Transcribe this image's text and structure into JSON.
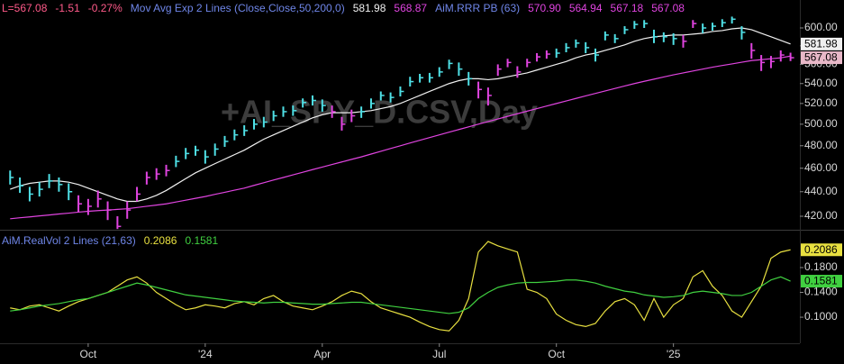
{
  "chart_data": [
    {
      "type": "ohlc",
      "watermark": "+AI_SPY_D.CSV,Day",
      "legend_items": [
        {
          "text": "L=567.08",
          "color": "#ff5a8a"
        },
        {
          "text": "-1.51",
          "color": "#ff5a8a"
        },
        {
          "text": "-0.27%",
          "color": "#ff5a8a"
        },
        {
          "text": "Mov Avg Exp 2 Lines (Close,Close,50,200,0)",
          "color": "#6f86e8"
        },
        {
          "text": "581.98",
          "color": "#f0f0f0"
        },
        {
          "text": "568.87",
          "color": "#e044e0"
        },
        {
          "text": "AiM.RRR PB (63)",
          "color": "#6f86e8"
        },
        {
          "text": "570.90",
          "color": "#e044e0"
        },
        {
          "text": "564.94",
          "color": "#e044e0"
        },
        {
          "text": "567.18",
          "color": "#e044e0"
        },
        {
          "text": "567.08",
          "color": "#e044e0"
        }
      ],
      "log_scale": true,
      "xlim": [
        0.74,
        21.24
      ],
      "ylim": [
        409.4,
        632.6
      ],
      "yticks": [
        {
          "value": 420,
          "label": "420.00"
        },
        {
          "value": 440,
          "label": "440.00"
        },
        {
          "value": 460,
          "label": "460.00"
        },
        {
          "value": 480,
          "label": "480.00"
        },
        {
          "value": 500,
          "label": "500.00"
        },
        {
          "value": 520,
          "label": "520.00"
        },
        {
          "value": 540,
          "label": "540.00"
        },
        {
          "value": 560,
          "label": "560.00"
        },
        {
          "value": 580,
          "label": "580.00"
        },
        {
          "value": 600,
          "label": "600.00"
        }
      ],
      "x": [
        1,
        1.25,
        1.5,
        1.75,
        2,
        2.25,
        2.5,
        2.75,
        3,
        3.25,
        3.5,
        3.75,
        4,
        4.25,
        4.5,
        4.75,
        5,
        5.25,
        5.5,
        5.75,
        6,
        6.25,
        6.5,
        6.75,
        7,
        7.25,
        7.5,
        7.75,
        8,
        8.25,
        8.5,
        8.75,
        9,
        9.25,
        9.5,
        9.75,
        10,
        10.25,
        10.5,
        10.75,
        11,
        11.25,
        11.5,
        11.75,
        12,
        12.25,
        12.5,
        12.75,
        13,
        13.25,
        13.5,
        13.75,
        14,
        14.25,
        14.5,
        14.75,
        15,
        15.25,
        15.5,
        15.75,
        16,
        16.25,
        16.5,
        16.75,
        17,
        17.25,
        17.5,
        17.75,
        18,
        18.25,
        18.5,
        18.75,
        19,
        19.25,
        19.5,
        19.75,
        20,
        20.25,
        20.5,
        20.75,
        21
      ],
      "high": [
        458,
        452,
        444,
        448,
        455,
        452,
        447,
        437,
        434,
        441,
        432,
        420,
        432,
        444,
        457,
        460,
        463,
        471,
        478,
        480,
        476,
        482,
        489,
        495,
        499,
        505,
        507,
        513,
        517,
        518,
        525,
        528,
        524,
        518,
        507,
        514,
        517,
        525,
        532,
        531,
        537,
        547,
        550,
        551,
        557,
        565,
        562,
        552,
        542,
        536,
        560,
        566,
        558,
        566,
        572,
        575,
        577,
        583,
        587,
        584,
        577,
        596,
        593,
        602,
        608,
        609,
        598,
        595,
        594,
        592,
        609,
        605,
        606,
        610,
        613,
        602,
        583,
        570,
        569,
        575,
        572.5
      ],
      "low": [
        446,
        439,
        432,
        436,
        443,
        440,
        433,
        423,
        421,
        427,
        417,
        410,
        418,
        432,
        446,
        450,
        453,
        461,
        468,
        471,
        464,
        471,
        479,
        485,
        489,
        495,
        497,
        503,
        507,
        508,
        516,
        518,
        512,
        506,
        494,
        502,
        506,
        515,
        523,
        521,
        527,
        537,
        541,
        541,
        547,
        555,
        548,
        538,
        525,
        518,
        548,
        557,
        546,
        557,
        563,
        566,
        567,
        573,
        578,
        572,
        563,
        586,
        583,
        593,
        599,
        600,
        583,
        584,
        581,
        578,
        600,
        594,
        597,
        601,
        605,
        587,
        566,
        553,
        556,
        563,
        563.5
      ],
      "close": [
        452,
        445,
        438,
        442,
        449,
        446,
        440,
        430,
        428,
        434,
        425,
        412,
        425,
        438,
        452,
        455,
        458,
        466,
        473,
        476,
        470,
        477,
        484,
        490,
        494,
        500,
        502,
        508,
        512,
        513,
        521,
        523,
        518,
        512,
        500,
        508,
        512,
        520,
        528,
        526,
        532,
        542,
        546,
        546,
        552,
        561,
        555,
        545,
        534,
        528,
        555,
        562,
        552,
        562,
        568,
        571,
        572,
        578,
        583,
        578,
        570,
        592,
        588,
        598,
        604,
        605,
        590,
        590,
        588,
        585,
        605,
        600,
        602,
        606,
        610,
        595,
        575,
        562,
        563,
        570,
        567.08
      ],
      "bar_colors": [
        "#4fe0e6",
        "#4fe0e6",
        "#4fe0e6",
        "#4fe0e6",
        "#4fe0e6",
        "#4fe0e6",
        "#4fe0e6",
        "#e044e0",
        "#e044e0",
        "#e044e0",
        "#e044e0",
        "#e044e0",
        "#e044e0",
        "#e044e0",
        "#e044e0",
        "#e044e0",
        "#e044e0",
        "#4fe0e6",
        "#4fe0e6",
        "#4fe0e6",
        "#4fe0e6",
        "#4fe0e6",
        "#4fe0e6",
        "#4fe0e6",
        "#4fe0e6",
        "#4fe0e6",
        "#4fe0e6",
        "#4fe0e6",
        "#4fe0e6",
        "#4fe0e6",
        "#4fe0e6",
        "#4fe0e6",
        "#4fe0e6",
        "#e044e0",
        "#e044e0",
        "#e044e0",
        "#4fe0e6",
        "#4fe0e6",
        "#4fe0e6",
        "#4fe0e6",
        "#4fe0e6",
        "#4fe0e6",
        "#4fe0e6",
        "#4fe0e6",
        "#4fe0e6",
        "#4fe0e6",
        "#4fe0e6",
        "#4fe0e6",
        "#e044e0",
        "#e044e0",
        "#e044e0",
        "#e044e0",
        "#e044e0",
        "#e044e0",
        "#e044e0",
        "#e044e0",
        "#4fe0e6",
        "#4fe0e6",
        "#4fe0e6",
        "#4fe0e6",
        "#4fe0e6",
        "#4fe0e6",
        "#4fe0e6",
        "#4fe0e6",
        "#4fe0e6",
        "#4fe0e6",
        "#4fe0e6",
        "#4fe0e6",
        "#4fe0e6",
        "#e044e0",
        "#e044e0",
        "#4fe0e6",
        "#4fe0e6",
        "#4fe0e6",
        "#4fe0e6",
        "#4fe0e6",
        "#e044e0",
        "#e044e0",
        "#e044e0",
        "#e044e0",
        "#e044e0"
      ],
      "series": [
        {
          "color": "#f0f0f0",
          "values": [
            442,
            445,
            447,
            448,
            449,
            449,
            448,
            446,
            443,
            440,
            437,
            434,
            432,
            432,
            434,
            437,
            441,
            446,
            451,
            456,
            460,
            464,
            468,
            472,
            476,
            481,
            486,
            490,
            494,
            498,
            502,
            506,
            509,
            511,
            511,
            511,
            512,
            513,
            515,
            517,
            520,
            524,
            528,
            532,
            536,
            540,
            543,
            545,
            545,
            544,
            545,
            547,
            549,
            551,
            554,
            557,
            560,
            563,
            567,
            570,
            572,
            575,
            578,
            581,
            585,
            588,
            590,
            591,
            592,
            592,
            593,
            594,
            596,
            597,
            599,
            600,
            598,
            594,
            590,
            586,
            581.98
          ]
        },
        {
          "color": "#e044e0",
          "values": [
            418,
            418.8,
            419.5,
            420.3,
            421,
            421.8,
            422.5,
            423.3,
            424,
            424.5,
            425,
            425.5,
            426,
            427,
            428,
            429,
            430,
            431.5,
            433,
            434.5,
            436,
            437.8,
            439.5,
            441.3,
            443,
            445.3,
            447.5,
            449.8,
            452,
            454.3,
            456.5,
            458.8,
            461,
            463.3,
            465.5,
            467.8,
            470,
            472.5,
            475,
            477.5,
            480,
            482.5,
            485,
            487.5,
            490,
            492.5,
            495,
            497.5,
            500,
            502.5,
            505,
            507.5,
            510,
            512.5,
            515,
            517.5,
            520,
            522.5,
            525,
            527.5,
            530,
            532.5,
            535,
            537.5,
            540,
            542.3,
            544.5,
            546.8,
            549,
            551,
            553,
            555,
            557,
            558.8,
            560.5,
            562.3,
            564,
            565,
            566,
            567,
            568.87
          ]
        }
      ],
      "end_labels": [
        {
          "value": 581.98,
          "color": "#f0f0f0"
        },
        {
          "value": 567.08,
          "color": "#e8b8c8"
        }
      ]
    },
    {
      "type": "line",
      "legend_items": [
        {
          "text": "AiM.RealVol 2 Lines (21,63)",
          "color": "#6f86e8"
        },
        {
          "text": "0.2086",
          "color": "#e8e040"
        },
        {
          "text": "0.1581",
          "color": "#40d040"
        }
      ],
      "xlim": [
        0.74,
        21.24
      ],
      "xticks": [
        {
          "value": 3,
          "label": "Oct"
        },
        {
          "value": 6,
          "label": "'24"
        },
        {
          "value": 9,
          "label": "Apr"
        },
        {
          "value": 12,
          "label": "Jul"
        },
        {
          "value": 15,
          "label": "Oct"
        },
        {
          "value": 18,
          "label": "'25"
        }
      ],
      "ylim": [
        0.058,
        0.238
      ],
      "yticks": [
        {
          "value": 0.1,
          "label": "0.1000"
        },
        {
          "value": 0.14,
          "label": "0.1400"
        },
        {
          "value": 0.18,
          "label": "0.1800"
        }
      ],
      "x": [
        1,
        1.25,
        1.5,
        1.75,
        2,
        2.25,
        2.5,
        2.75,
        3,
        3.25,
        3.5,
        3.75,
        4,
        4.25,
        4.5,
        4.75,
        5,
        5.25,
        5.5,
        5.75,
        6,
        6.25,
        6.5,
        6.75,
        7,
        7.25,
        7.5,
        7.75,
        8,
        8.25,
        8.5,
        8.75,
        9,
        9.25,
        9.5,
        9.75,
        10,
        10.25,
        10.5,
        10.75,
        11,
        11.25,
        11.5,
        11.75,
        12,
        12.25,
        12.5,
        12.75,
        13,
        13.25,
        13.5,
        13.75,
        14,
        14.25,
        14.5,
        14.75,
        15,
        15.25,
        15.5,
        15.75,
        16,
        16.25,
        16.5,
        16.75,
        17,
        17.25,
        17.5,
        17.75,
        18,
        18.25,
        18.5,
        18.75,
        19,
        19.25,
        19.5,
        19.75,
        20,
        20.25,
        20.5,
        20.75,
        21
      ],
      "series": [
        {
          "color": "#e8e040",
          "values": [
            0.115,
            0.112,
            0.118,
            0.12,
            0.115,
            0.11,
            0.118,
            0.125,
            0.13,
            0.135,
            0.14,
            0.15,
            0.16,
            0.165,
            0.155,
            0.14,
            0.13,
            0.12,
            0.112,
            0.115,
            0.12,
            0.118,
            0.115,
            0.122,
            0.125,
            0.12,
            0.13,
            0.135,
            0.125,
            0.118,
            0.115,
            0.112,
            0.118,
            0.125,
            0.135,
            0.142,
            0.138,
            0.125,
            0.115,
            0.11,
            0.105,
            0.1,
            0.092,
            0.085,
            0.08,
            0.078,
            0.095,
            0.13,
            0.205,
            0.222,
            0.215,
            0.21,
            0.205,
            0.145,
            0.14,
            0.13,
            0.105,
            0.095,
            0.088,
            0.085,
            0.09,
            0.11,
            0.125,
            0.13,
            0.12,
            0.095,
            0.13,
            0.1,
            0.12,
            0.13,
            0.165,
            0.175,
            0.15,
            0.135,
            0.11,
            0.1,
            0.125,
            0.15,
            0.195,
            0.205,
            0.2086
          ]
        },
        {
          "color": "#40d040",
          "values": [
            0.11,
            0.112,
            0.115,
            0.118,
            0.12,
            0.122,
            0.125,
            0.128,
            0.13,
            0.135,
            0.14,
            0.145,
            0.15,
            0.155,
            0.152,
            0.148,
            0.144,
            0.14,
            0.136,
            0.134,
            0.132,
            0.13,
            0.128,
            0.126,
            0.125,
            0.124,
            0.123,
            0.124,
            0.124,
            0.123,
            0.122,
            0.121,
            0.121,
            0.122,
            0.123,
            0.124,
            0.124,
            0.122,
            0.12,
            0.118,
            0.116,
            0.114,
            0.112,
            0.11,
            0.108,
            0.106,
            0.108,
            0.115,
            0.13,
            0.14,
            0.148,
            0.152,
            0.155,
            0.156,
            0.156,
            0.157,
            0.158,
            0.16,
            0.16,
            0.158,
            0.155,
            0.15,
            0.146,
            0.142,
            0.14,
            0.136,
            0.134,
            0.132,
            0.133,
            0.135,
            0.14,
            0.142,
            0.14,
            0.138,
            0.135,
            0.135,
            0.14,
            0.15,
            0.16,
            0.165,
            0.1581
          ]
        }
      ],
      "end_labels": [
        {
          "value": 0.2086,
          "color": "#e8e040"
        },
        {
          "value": 0.1581,
          "color": "#40d040"
        }
      ]
    }
  ]
}
